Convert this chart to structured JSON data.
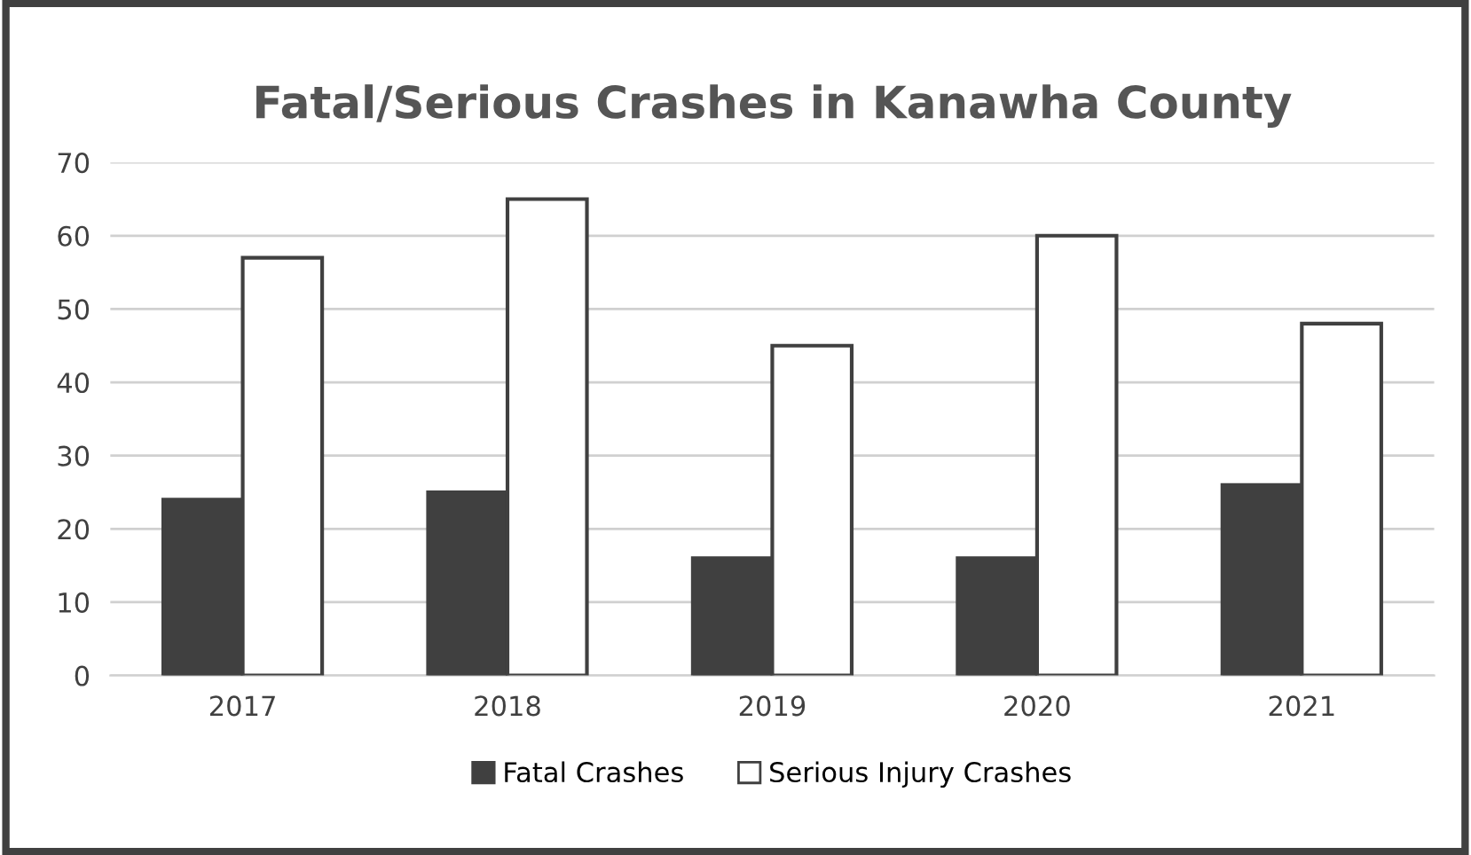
{
  "chart_data": {
    "type": "bar",
    "title": "Fatal/Serious Crashes in Kanawha County",
    "categories": [
      "2017",
      "2018",
      "2019",
      "2020",
      "2021"
    ],
    "series": [
      {
        "name": "Fatal Crashes",
        "color": "#404040",
        "values": [
          24,
          25,
          16,
          16,
          26
        ]
      },
      {
        "name": "Serious Injury Crashes",
        "color": "#ffffff",
        "values": [
          57,
          65,
          45,
          60,
          48
        ]
      }
    ],
    "ylim": [
      0,
      70
    ],
    "yticks": [
      0,
      10,
      20,
      30,
      40,
      50,
      60,
      70
    ],
    "grid": "y",
    "legend": "bottom"
  }
}
